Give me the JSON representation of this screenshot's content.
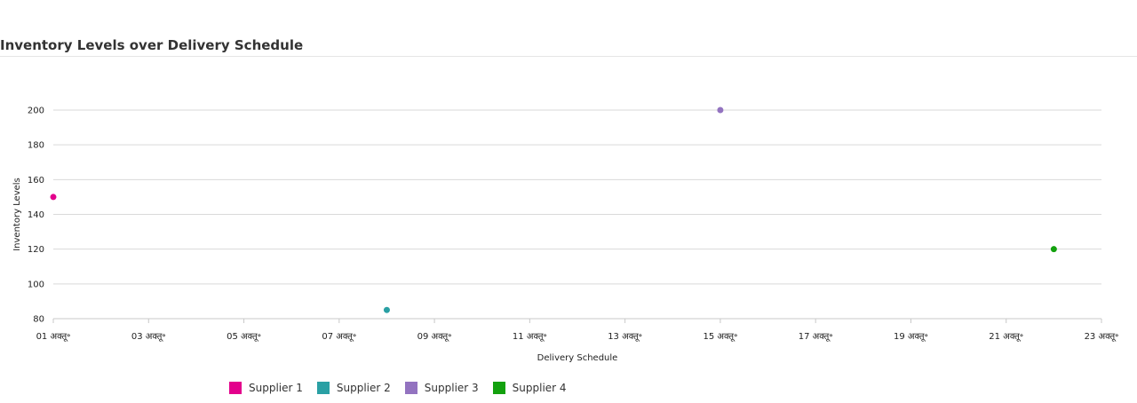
{
  "title": "Inventory Levels over Delivery Schedule",
  "chart_data": {
    "type": "scatter",
    "title": "Inventory Levels over Delivery Schedule",
    "xlabel": "Delivery Schedule",
    "ylabel": "Inventory Levels",
    "x_ticks": [
      "01 अक्तू॰",
      "03 अक्तू॰",
      "05 अक्तू॰",
      "07 अक्तू॰",
      "09 अक्तू॰",
      "11 अक्तू॰",
      "13 अक्तू॰",
      "15 अक्तू॰",
      "17 अक्तू॰",
      "19 अक्तू॰",
      "21 अक्तू॰",
      "23 अक्तू॰"
    ],
    "y_ticks": [
      80,
      100,
      120,
      140,
      160,
      180,
      200
    ],
    "xlim": [
      "01 अक्तू॰",
      "23 अक्तू॰"
    ],
    "ylim": [
      80,
      200
    ],
    "grid": true,
    "legend_position": "bottom",
    "series": [
      {
        "name": "Supplier 1",
        "color": "#e3008c",
        "points": [
          {
            "x": "01 अक्तू॰",
            "y": 150
          }
        ]
      },
      {
        "name": "Supplier 2",
        "color": "#2aa0a4",
        "points": [
          {
            "x": "08 अक्तू॰",
            "y": 85
          }
        ]
      },
      {
        "name": "Supplier 3",
        "color": "#9373c0",
        "points": [
          {
            "x": "15 अक्तू॰",
            "y": 200
          }
        ]
      },
      {
        "name": "Supplier 4",
        "color": "#13a10e",
        "points": [
          {
            "x": "22 अक्तू॰",
            "y": 120
          }
        ]
      }
    ]
  }
}
